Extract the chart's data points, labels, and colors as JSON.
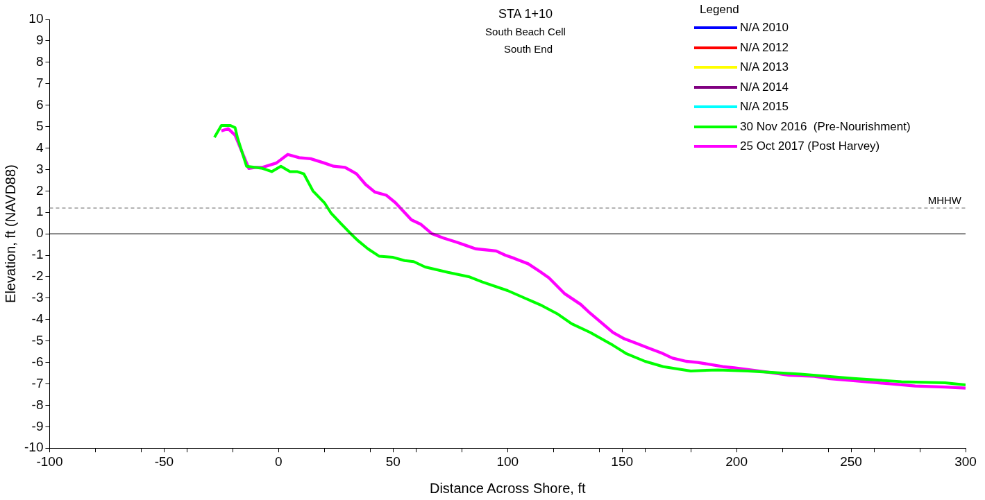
{
  "chart_data": {
    "type": "line",
    "title": "STA 1+10",
    "subtitle": "South Beach Cell\nSouth End",
    "xlabel": "Distance Across Shore, ft",
    "ylabel": "Elevation, ft (NAVD88)",
    "legend_title": "Legend",
    "legend": "top right",
    "grid": false,
    "marker": "none",
    "line_style": "solid",
    "xlim": [
      -100,
      300
    ],
    "xticks": [
      -100,
      {
        "value": -80,
        "label": null
      },
      {
        "value": -60,
        "label": null
      },
      -50,
      {
        "value": -40,
        "label": null
      },
      {
        "value": -20,
        "label": null
      },
      0,
      {
        "value": 20,
        "label": null
      },
      {
        "value": 40,
        "label": null
      },
      50,
      {
        "value": 60,
        "label": null
      },
      {
        "value": 80,
        "label": null
      },
      100,
      {
        "value": 120,
        "label": null
      },
      {
        "value": 140,
        "label": null
      },
      150,
      {
        "value": 160,
        "label": null
      },
      {
        "value": 180,
        "label": null
      },
      200,
      {
        "value": 220,
        "label": null
      },
      {
        "value": 240,
        "label": null
      },
      250,
      {
        "value": 260,
        "label": null
      },
      {
        "value": 280,
        "label": null
      },
      300
    ],
    "ylim": [
      -10,
      10
    ],
    "yticks": [
      -10,
      -9,
      -8,
      -7,
      -6,
      -5,
      -4,
      -3,
      -2,
      -1,
      0,
      1,
      2,
      3,
      4,
      5,
      6,
      7,
      8,
      9,
      10
    ],
    "ref_lines": [
      {
        "axis": "y",
        "value": 1.2,
        "label": "MHHW",
        "color": "#666666",
        "line_style": "dashed"
      },
      {
        "axis": "y",
        "value": 0,
        "color": "#000000",
        "line_style": "solid"
      }
    ],
    "series": [
      {
        "name": "N/A 2010",
        "color": "#0000ff"
      },
      {
        "name": "N/A 2012",
        "color": "#ff0000"
      },
      {
        "name": "N/A 2013",
        "color": "#ffff00"
      },
      {
        "name": "N/A 2014",
        "color": "#800080"
      },
      {
        "name": "N/A 2015",
        "color": "#00ffff"
      },
      {
        "name": "30 Nov 2016  (Pre-Nourishment)",
        "color": "#00ff00",
        "x": [
          -28,
          -25,
          -21,
          -19,
          -18,
          -14,
          -7,
          -3,
          1,
          5,
          8,
          11,
          15,
          20,
          23,
          27,
          32,
          35,
          39,
          44,
          50,
          55,
          59,
          64,
          74,
          83,
          89,
          100,
          115,
          122,
          128,
          136,
          146,
          152,
          160,
          168,
          180,
          192,
          205,
          228,
          251,
          272,
          291,
          300
        ],
        "values": [
          4.5,
          5.05,
          5.05,
          4.95,
          4.5,
          3.15,
          3.05,
          2.9,
          3.15,
          2.9,
          2.9,
          2.8,
          2.0,
          1.45,
          0.95,
          0.5,
          -0.05,
          -0.35,
          -0.7,
          -1.05,
          -1.1,
          -1.25,
          -1.3,
          -1.55,
          -1.8,
          -2.0,
          -2.25,
          -2.65,
          -3.35,
          -3.75,
          -4.2,
          -4.6,
          -5.2,
          -5.6,
          -5.95,
          -6.2,
          -6.4,
          -6.35,
          -6.4,
          -6.55,
          -6.75,
          -6.9,
          -6.95,
          -7.05
        ]
      },
      {
        "name": "25 Oct 2017 (Post Harvey)",
        "color": "#ff00ff",
        "x": [
          -25,
          -22,
          -19,
          -13,
          -10,
          -7,
          -1,
          4,
          9,
          14,
          20,
          24,
          29,
          34,
          38,
          42,
          47,
          51,
          58,
          62,
          67,
          72,
          78,
          82,
          86,
          95,
          99,
          103,
          109,
          114,
          118,
          125,
          132,
          136,
          146,
          151,
          156,
          162,
          167,
          171,
          172,
          178,
          183,
          194,
          199,
          213,
          223,
          234,
          240,
          251,
          267,
          278,
          291,
          300
        ],
        "values": [
          4.8,
          4.9,
          4.6,
          3.05,
          3.1,
          3.1,
          3.3,
          3.7,
          3.55,
          3.5,
          3.3,
          3.15,
          3.1,
          2.8,
          2.3,
          1.95,
          1.8,
          1.45,
          0.65,
          0.45,
          0.0,
          -0.2,
          -0.4,
          -0.55,
          -0.7,
          -0.8,
          -1.0,
          -1.15,
          -1.4,
          -1.75,
          -2.05,
          -2.8,
          -3.3,
          -3.7,
          -4.6,
          -4.9,
          -5.1,
          -5.35,
          -5.55,
          -5.75,
          -5.8,
          -5.95,
          -6.0,
          -6.2,
          -6.25,
          -6.45,
          -6.6,
          -6.65,
          -6.75,
          -6.85,
          -7.0,
          -7.1,
          -7.15,
          -7.2
        ]
      }
    ]
  }
}
